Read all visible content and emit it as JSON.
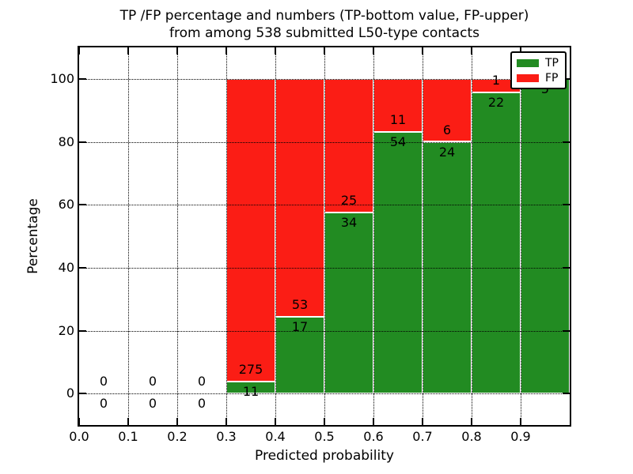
{
  "chart_data": {
    "type": "bar",
    "stacked": true,
    "orientation": "vertical",
    "title_lines": [
      "TP /FP percentage and numbers (TP-bottom value, FP-upper)",
      "from among 538 submitted L50-type contacts"
    ],
    "xlabel": "Predicted probability",
    "ylabel": "Percentage",
    "xlim": [
      0.0,
      1.0
    ],
    "ylim": [
      -10,
      110
    ],
    "xtick_values": [
      0.0,
      0.1,
      0.2,
      0.3,
      0.4,
      0.5,
      0.6,
      0.7,
      0.8,
      0.9
    ],
    "xtick_labels": [
      "0.0",
      "0.1",
      "0.2",
      "0.3",
      "0.4",
      "0.5",
      "0.6",
      "0.7",
      "0.8",
      "0.9"
    ],
    "ytick_values": [
      0,
      20,
      40,
      60,
      80,
      100
    ],
    "ytick_labels": [
      "0",
      "20",
      "40",
      "60",
      "80",
      "100"
    ],
    "grid": {
      "on": true,
      "style": "dotted",
      "color": "#000000"
    },
    "total_contacts": 538,
    "series": [
      {
        "name": "TP",
        "color": "#228B22"
      },
      {
        "name": "FP",
        "color": "#FB1D15"
      }
    ],
    "bar_edge_color": "#ffffff",
    "bins": [
      {
        "x_start": 0.0,
        "x_end": 0.1,
        "tp": 0,
        "fp": 0,
        "tp_pct": null,
        "fp_pct": null
      },
      {
        "x_start": 0.1,
        "x_end": 0.2,
        "tp": 0,
        "fp": 0,
        "tp_pct": null,
        "fp_pct": null
      },
      {
        "x_start": 0.2,
        "x_end": 0.3,
        "tp": 0,
        "fp": 0,
        "tp_pct": null,
        "fp_pct": null
      },
      {
        "x_start": 0.3,
        "x_end": 0.4,
        "tp": 11,
        "fp": 275,
        "tp_pct": 3.85,
        "fp_pct": 96.15
      },
      {
        "x_start": 0.4,
        "x_end": 0.5,
        "tp": 17,
        "fp": 53,
        "tp_pct": 24.29,
        "fp_pct": 75.71
      },
      {
        "x_start": 0.5,
        "x_end": 0.6,
        "tp": 34,
        "fp": 25,
        "tp_pct": 57.63,
        "fp_pct": 42.37
      },
      {
        "x_start": 0.6,
        "x_end": 0.7,
        "tp": 54,
        "fp": 11,
        "tp_pct": 83.08,
        "fp_pct": 16.92
      },
      {
        "x_start": 0.7,
        "x_end": 0.8,
        "tp": 24,
        "fp": 6,
        "tp_pct": 80.0,
        "fp_pct": 20.0
      },
      {
        "x_start": 0.8,
        "x_end": 0.9,
        "tp": 22,
        "fp": 1,
        "tp_pct": 95.65,
        "fp_pct": 4.35
      },
      {
        "x_start": 0.9,
        "x_end": 1.0,
        "tp": 5,
        "fp": 0,
        "tp_pct": 100.0,
        "fp_pct": 0.0
      }
    ],
    "legend": {
      "position": "upper right",
      "items": [
        {
          "label": "TP",
          "color": "#228B22"
        },
        {
          "label": "FP",
          "color": "#FB1D15"
        }
      ]
    }
  }
}
